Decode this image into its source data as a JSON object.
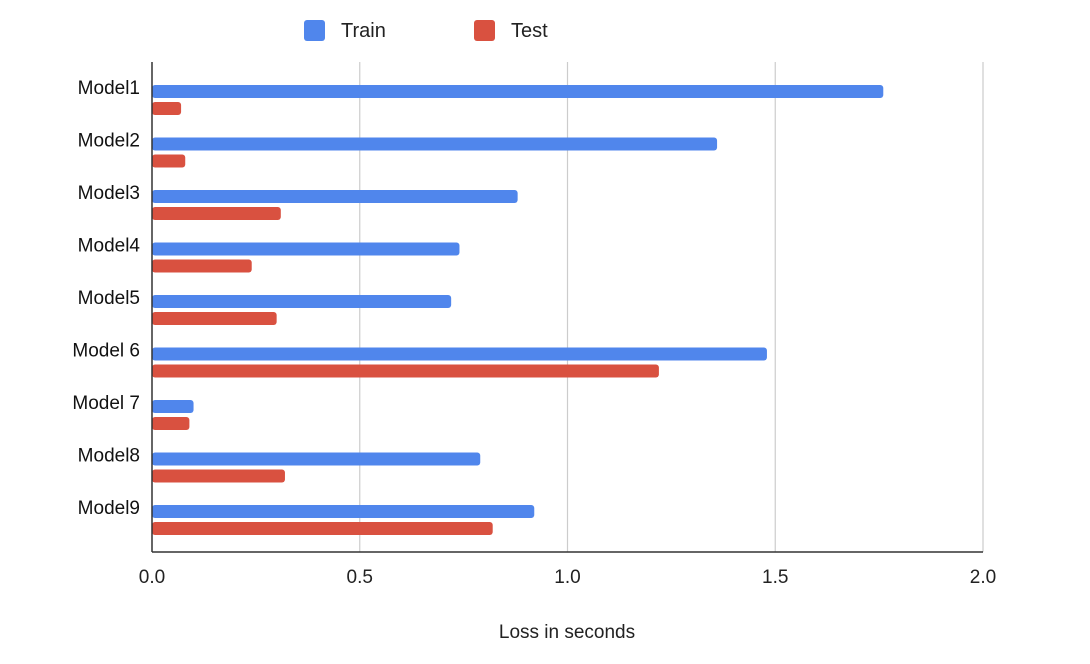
{
  "chart_data": {
    "type": "bar",
    "orientation": "horizontal",
    "categories": [
      "Model1",
      "Model2",
      "Model3",
      "Model4",
      "Model5",
      "Model 6",
      "Model 7",
      "Model8",
      "Model9"
    ],
    "series": [
      {
        "name": "Train",
        "color": "#5086ec",
        "values": [
          1.76,
          1.36,
          0.88,
          0.74,
          0.72,
          1.48,
          0.1,
          0.79,
          0.92
        ]
      },
      {
        "name": "Test",
        "color": "#d95140",
        "values": [
          0.07,
          0.08,
          0.31,
          0.24,
          0.3,
          1.22,
          0.09,
          0.32,
          0.82
        ]
      }
    ],
    "xlabel": "Loss in seconds",
    "ylabel": "",
    "xlim": [
      0,
      2.0
    ],
    "xticks": [
      "0.0",
      "0.5",
      "1.0",
      "1.5",
      "2.0"
    ],
    "grid": true,
    "legend_position": "top"
  }
}
